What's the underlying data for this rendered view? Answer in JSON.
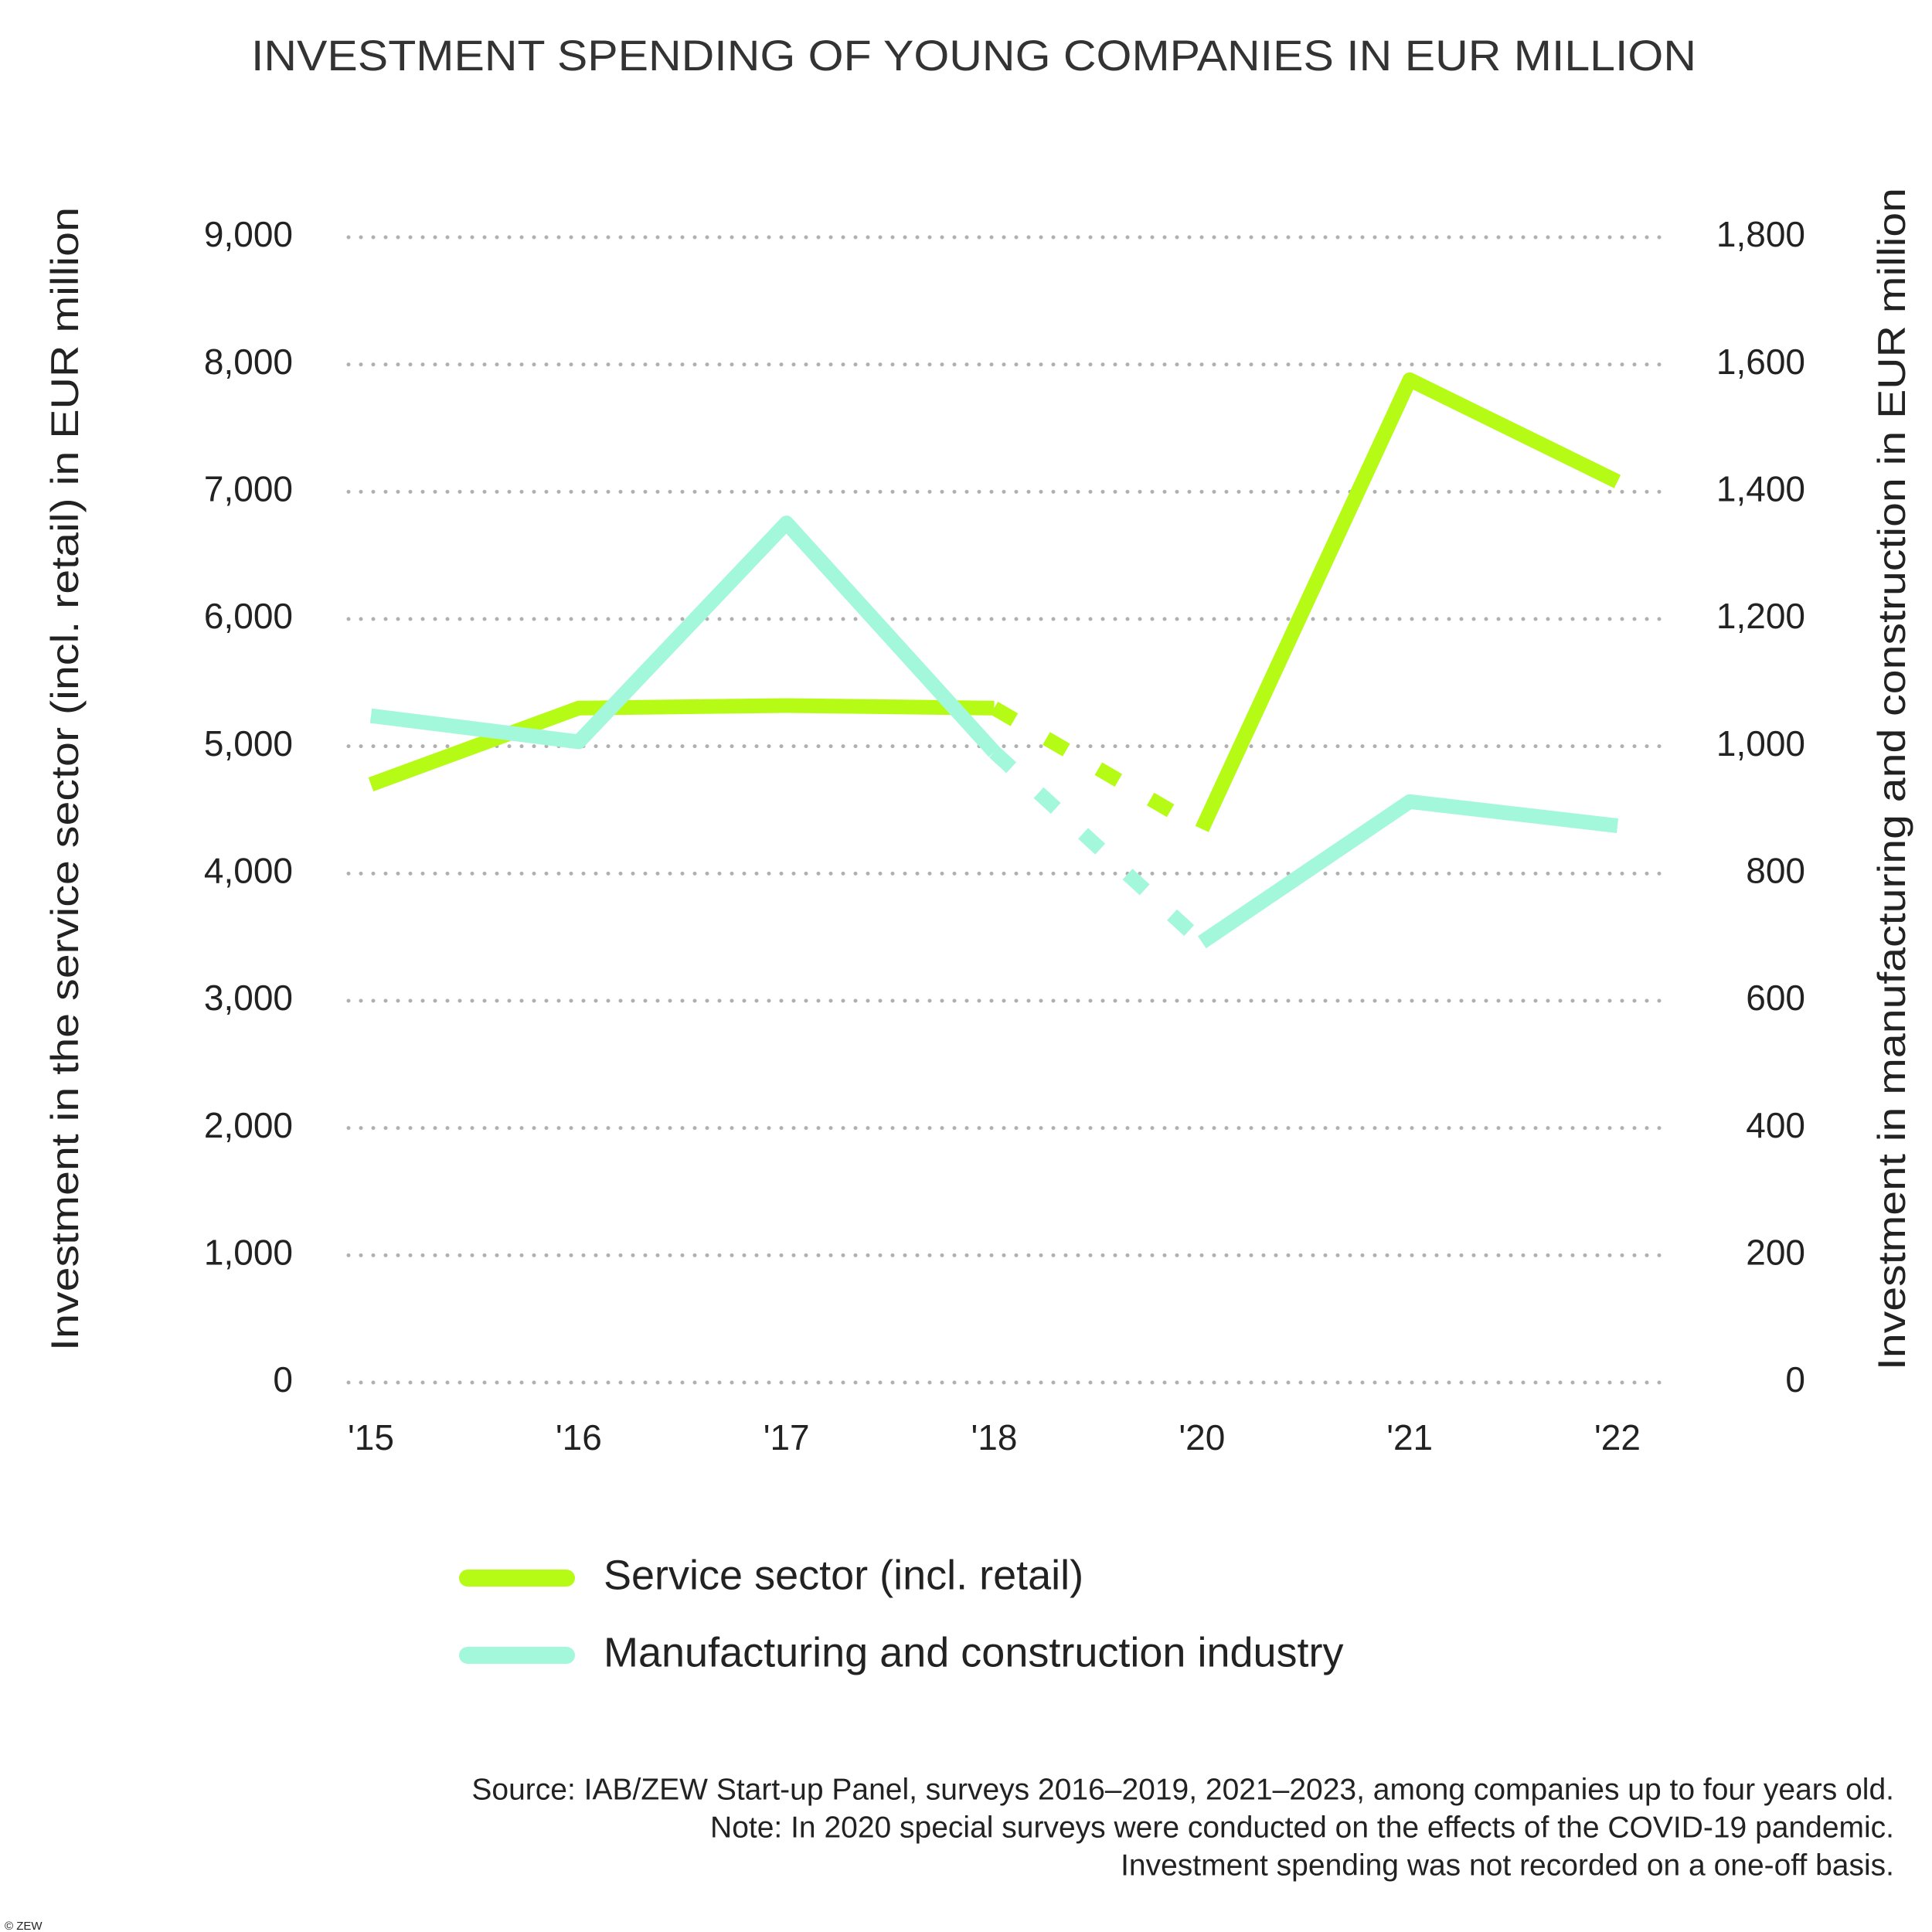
{
  "chart_data": {
    "type": "line",
    "title": "INVESTMENT SPENDING OF YOUNG COMPANIES IN EUR MILLION",
    "y_label": "Investment in the service sector (incl. retail) in EUR million",
    "y2_label": "Investment in manufacturing and construction in EUR million",
    "categories": [
      "'15",
      "'16",
      "'17",
      "'18",
      "'20",
      "'21",
      "'22"
    ],
    "series": [
      {
        "name": "Service sector (incl. retail)",
        "color": "#b5fb16",
        "values": [
          4700,
          5300,
          5320,
          5300,
          4350,
          7880,
          7080
        ]
      },
      {
        "name": "Manufacturing and construction industry",
        "color": "#a3f8dc",
        "axis": "y2",
        "values": [
          1048,
          1007,
          1351,
          991,
          692,
          913,
          875
        ]
      }
    ],
    "ylim": [
      0,
      9000
    ],
    "yticks": [
      0,
      {
        "value": 1000,
        "label": "1,000"
      },
      {
        "value": 2000,
        "label": "2,000"
      },
      {
        "value": 3000,
        "label": "3,000"
      },
      {
        "value": 4000,
        "label": "4,000"
      },
      {
        "value": 5000,
        "label": "5,000"
      },
      {
        "value": 6000,
        "label": "6,000"
      },
      {
        "value": 7000,
        "label": "7,000"
      },
      {
        "value": 8000,
        "label": "8,000"
      },
      {
        "value": 9000,
        "label": "9,000"
      }
    ],
    "y2lim": [
      0,
      1800
    ],
    "y2ticks": [
      0,
      200,
      400,
      600,
      800,
      {
        "value": 1000,
        "label": "1,000"
      },
      {
        "value": 1200,
        "label": "1,200"
      },
      {
        "value": 1400,
        "label": "1,400"
      },
      {
        "value": 1600,
        "label": "1,600"
      },
      {
        "value": 1800,
        "label": "1,800"
      }
    ],
    "grid": true,
    "notes": [
      "Source: IAB/ZEW Start-up Panel, surveys 2016–2019, 2021–2023, among companies up to four years old.",
      "Note: In 2020 special surveys were conducted on the effects of the COVID-19 pandemic.",
      "Investment spending was not recorded on a one-off basis."
    ],
    "copyright": "© ZEW"
  }
}
